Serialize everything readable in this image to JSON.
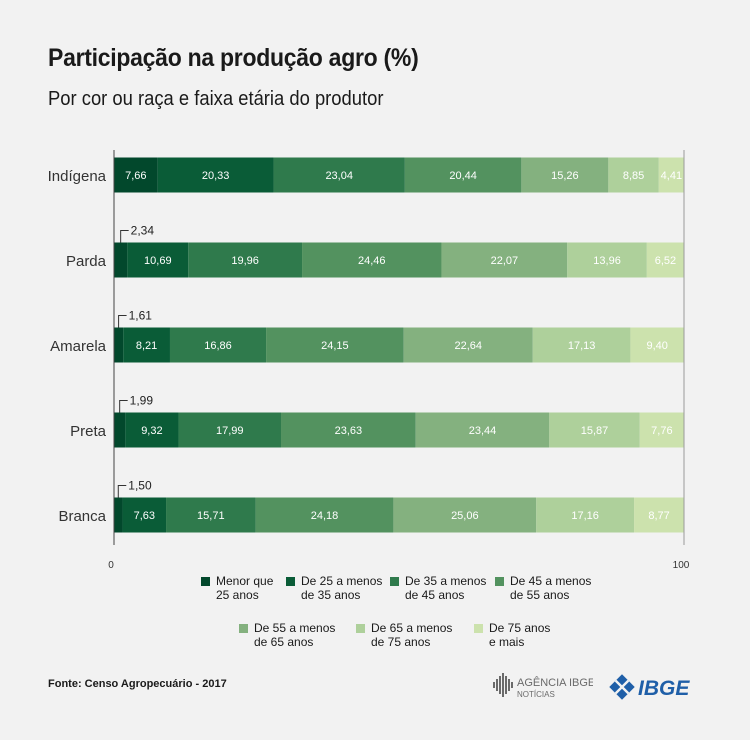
{
  "title": "Participação na produção agro (%)",
  "subtitle": "Por cor ou raça e faixa etária do produtor",
  "source": "Fonte: Censo Agropecuário - 2017",
  "logos": {
    "agencia_line1": "AGÊNCIA IBGE",
    "agencia_line2": "NOTÍCIAS",
    "ibge": "IBGE"
  },
  "colors": [
    "#02482c",
    "#0a5c37",
    "#2f7a4c",
    "#53925f",
    "#84b17f",
    "#aed09b",
    "#cce2ad"
  ],
  "legend": [
    [
      "Menor que",
      "25 anos"
    ],
    [
      "De 25 a menos",
      "de 35 anos"
    ],
    [
      "De 35 a menos",
      "de 45 anos"
    ],
    [
      "De 45 a menos",
      "de 55 anos"
    ],
    [
      "De 55 a menos",
      "de 65 anos"
    ],
    [
      "De 65 a menos",
      "de 75 anos"
    ],
    [
      "De 75 anos",
      "e mais"
    ]
  ],
  "chart_data": {
    "type": "bar",
    "orientation": "horizontal",
    "stacked": true,
    "title": "Participação na produção agro (%)",
    "subtitle": "Por cor ou raça e faixa etária do produtor",
    "categories": [
      "Indígena",
      "Parda",
      "Amarela",
      "Preta",
      "Branca"
    ],
    "xlim": [
      0,
      100
    ],
    "x_ticks": [
      "0",
      "100"
    ],
    "legend_position": "bottom",
    "grid": false,
    "series": [
      {
        "name": "Menor que 25 anos",
        "values": [
          7.66,
          2.34,
          1.61,
          1.99,
          1.5
        ],
        "labels": [
          "7,66",
          "2,34",
          "1,61",
          "1,99",
          "1,50"
        ]
      },
      {
        "name": "De 25 a menos de 35 anos",
        "values": [
          20.33,
          10.69,
          8.21,
          9.32,
          7.63
        ],
        "labels": [
          "20,33",
          "10,69",
          "8,21",
          "9,32",
          "7,63"
        ]
      },
      {
        "name": "De 35 a menos de 45 anos",
        "values": [
          23.04,
          19.96,
          16.86,
          17.99,
          15.71
        ],
        "labels": [
          "23,04",
          "19,96",
          "16,86",
          "17,99",
          "15,71"
        ]
      },
      {
        "name": "De 45 a menos de 55 anos",
        "values": [
          20.44,
          24.46,
          24.15,
          23.63,
          24.18
        ],
        "labels": [
          "20,44",
          "24,46",
          "24,15",
          "23,63",
          "24,18"
        ]
      },
      {
        "name": "De 55 a menos de 65 anos",
        "values": [
          15.26,
          22.07,
          22.64,
          23.44,
          25.06
        ],
        "labels": [
          "15,26",
          "22,07",
          "22,64",
          "23,44",
          "25,06"
        ]
      },
      {
        "name": "De 65 a menos de 75 anos",
        "values": [
          8.85,
          13.96,
          17.13,
          15.87,
          17.16
        ],
        "labels": [
          "8,85",
          "13,96",
          "17,13",
          "15,87",
          "17,16"
        ]
      },
      {
        "name": "De 75 anos e mais",
        "values": [
          4.41,
          6.52,
          9.4,
          7.76,
          8.77
        ],
        "labels": [
          "4,41",
          "6,52",
          "9,40",
          "7,76",
          "8,77"
        ]
      }
    ]
  }
}
